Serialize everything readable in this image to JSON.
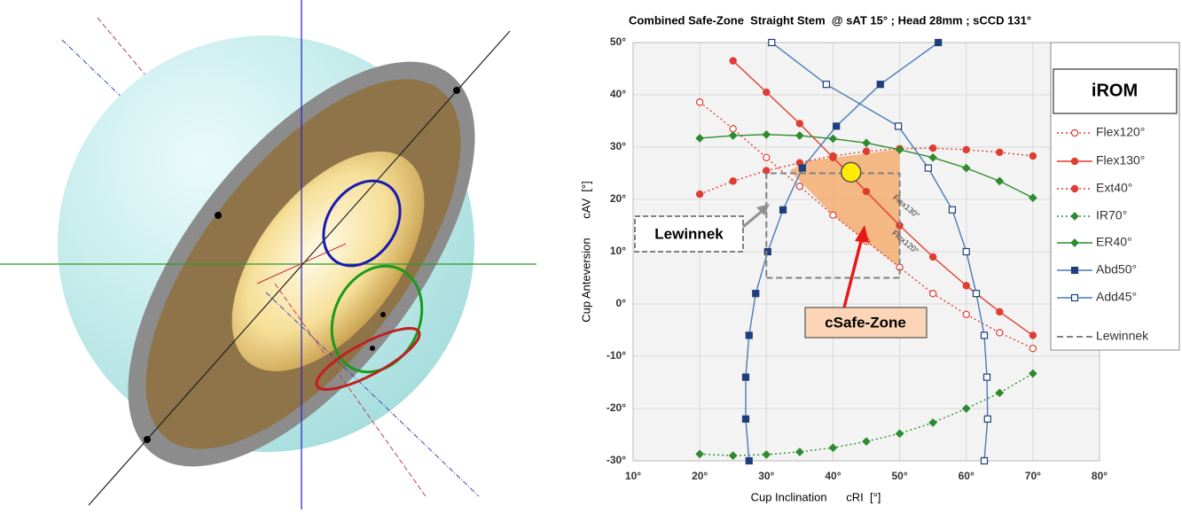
{
  "chart_data": {
    "type": "line",
    "title": "Combined Safe-Zone  Straight Stem  @ sAT 15° ; Head 28mm ; sCCD 131°",
    "xlabel": "Cup Inclination      cRI  [°]",
    "ylabel": "Cup Anteversion      cAV  [°]",
    "xlim": [
      10,
      80
    ],
    "xticks": [
      {
        "value": 10,
        "label": "10°"
      },
      {
        "value": 20,
        "label": "20°"
      },
      {
        "value": 30,
        "label": "30°"
      },
      {
        "value": 40,
        "label": "40°"
      },
      {
        "value": 50,
        "label": "50°"
      },
      {
        "value": 60,
        "label": "60°"
      },
      {
        "value": 70,
        "label": "70°"
      },
      {
        "value": 80,
        "label": "80°"
      }
    ],
    "ylim": [
      -30,
      50
    ],
    "yticks": [
      {
        "value": -30,
        "label": "-30°"
      },
      {
        "value": -20,
        "label": "-20°"
      },
      {
        "value": -10,
        "label": "-10°"
      },
      {
        "value": 0,
        "label": "0°"
      },
      {
        "value": 10,
        "label": "10°"
      },
      {
        "value": 20,
        "label": "20°"
      },
      {
        "value": 30,
        "label": "30°"
      },
      {
        "value": 40,
        "label": "40°"
      },
      {
        "value": 50,
        "label": "50°"
      }
    ],
    "grid": true,
    "legend_title": "iROM",
    "legend": "right",
    "series": [
      {
        "name": "Flex120°",
        "color": "#e03c31",
        "line_style": "dotted",
        "marker": "circle",
        "marker_fill": "open",
        "x": [
          20,
          25,
          30,
          35,
          40,
          45,
          50,
          55,
          60,
          65,
          70
        ],
        "values": [
          38.6,
          33.5,
          28,
          22.5,
          17,
          12,
          7,
          2,
          -2,
          -5.5,
          -8.5
        ]
      },
      {
        "name": "Flex130°",
        "color": "#e03c31",
        "line_style": "solid",
        "marker": "circle",
        "marker_fill": "filled",
        "x": [
          25,
          30,
          35,
          40,
          45,
          50,
          55,
          60,
          65,
          70
        ],
        "values": [
          46.5,
          40.5,
          34.5,
          28,
          21.5,
          15,
          9,
          3.5,
          -1.5,
          -6
        ]
      },
      {
        "name": "Ext40°",
        "color": "#e03c31",
        "line_style": "dotted",
        "marker": "circle",
        "marker_fill": "filled",
        "x": [
          20,
          25,
          30,
          35,
          40,
          45,
          50,
          55,
          60,
          65,
          70
        ],
        "values": [
          21,
          23.5,
          25.5,
          27,
          28.3,
          29.2,
          29.7,
          29.8,
          29.5,
          29,
          28.3
        ]
      },
      {
        "name": "IR70°",
        "color": "#2e8b2e",
        "line_style": "dotted",
        "marker": "diamond",
        "marker_fill": "filled",
        "x": [
          20,
          25,
          30,
          35,
          40,
          45,
          50,
          55,
          60,
          65,
          70
        ],
        "values": [
          -28.7,
          -29,
          -28.8,
          -28.3,
          -27.5,
          -26.3,
          -24.8,
          -22.7,
          -20,
          -17,
          -13.3
        ]
      },
      {
        "name": "ER40°",
        "color": "#2e8b2e",
        "line_style": "solid",
        "marker": "diamond",
        "marker_fill": "filled",
        "x": [
          20,
          25,
          30,
          35,
          40,
          45,
          50,
          55,
          60,
          65,
          70
        ],
        "values": [
          31.7,
          32.2,
          32.4,
          32.2,
          31.6,
          30.8,
          29.5,
          28,
          26,
          23.5,
          20.3
        ]
      },
      {
        "name": "Abd50°",
        "color": "#1f3f7a",
        "line_color": "#4a7ab5",
        "line_style": "solid",
        "marker": "square",
        "marker_fill": "filled",
        "x": [
          27.4,
          26.9,
          26.9,
          27.4,
          28.4,
          30.2,
          32.5,
          35.4,
          40.5,
          47.1,
          55.8
        ],
        "values": [
          -30,
          -22,
          -14,
          -6,
          2,
          10,
          18,
          26,
          34,
          42,
          50
        ]
      },
      {
        "name": "Add45°",
        "color": "#1f3f7a",
        "line_color": "#4a7ab5",
        "line_style": "solid",
        "marker": "square",
        "marker_fill": "open",
        "x": [
          30.8,
          39,
          49.8,
          54.3,
          57.9,
          60,
          61.5,
          62.7,
          63.1,
          63.2,
          62.7
        ],
        "values": [
          50,
          42,
          34,
          26,
          18,
          10,
          2,
          -6,
          -14,
          -22,
          -30
        ]
      },
      {
        "name": "Lewinnek",
        "color": "#808080",
        "line_style": "dashed",
        "marker": "none",
        "marker_fill": "none",
        "x": [
          30,
          50,
          50,
          30,
          30
        ],
        "values": [
          5,
          5,
          25,
          25,
          5
        ]
      }
    ],
    "safe_zone": {
      "color": "#f4a460",
      "x": [
        33.5,
        36,
        50,
        50,
        40,
        33.5
      ],
      "values": [
        25.5,
        27.3,
        29.6,
        7,
        17,
        25.5
      ]
    },
    "target": {
      "color": "#ffeb00",
      "x": 42.7,
      "y": 25.2
    },
    "annotations": [
      {
        "text": "Lewinnek"
      },
      {
        "text": "cSafe-Zone"
      },
      {
        "text": "Flex130°"
      },
      {
        "text": "Flex120°"
      }
    ]
  }
}
